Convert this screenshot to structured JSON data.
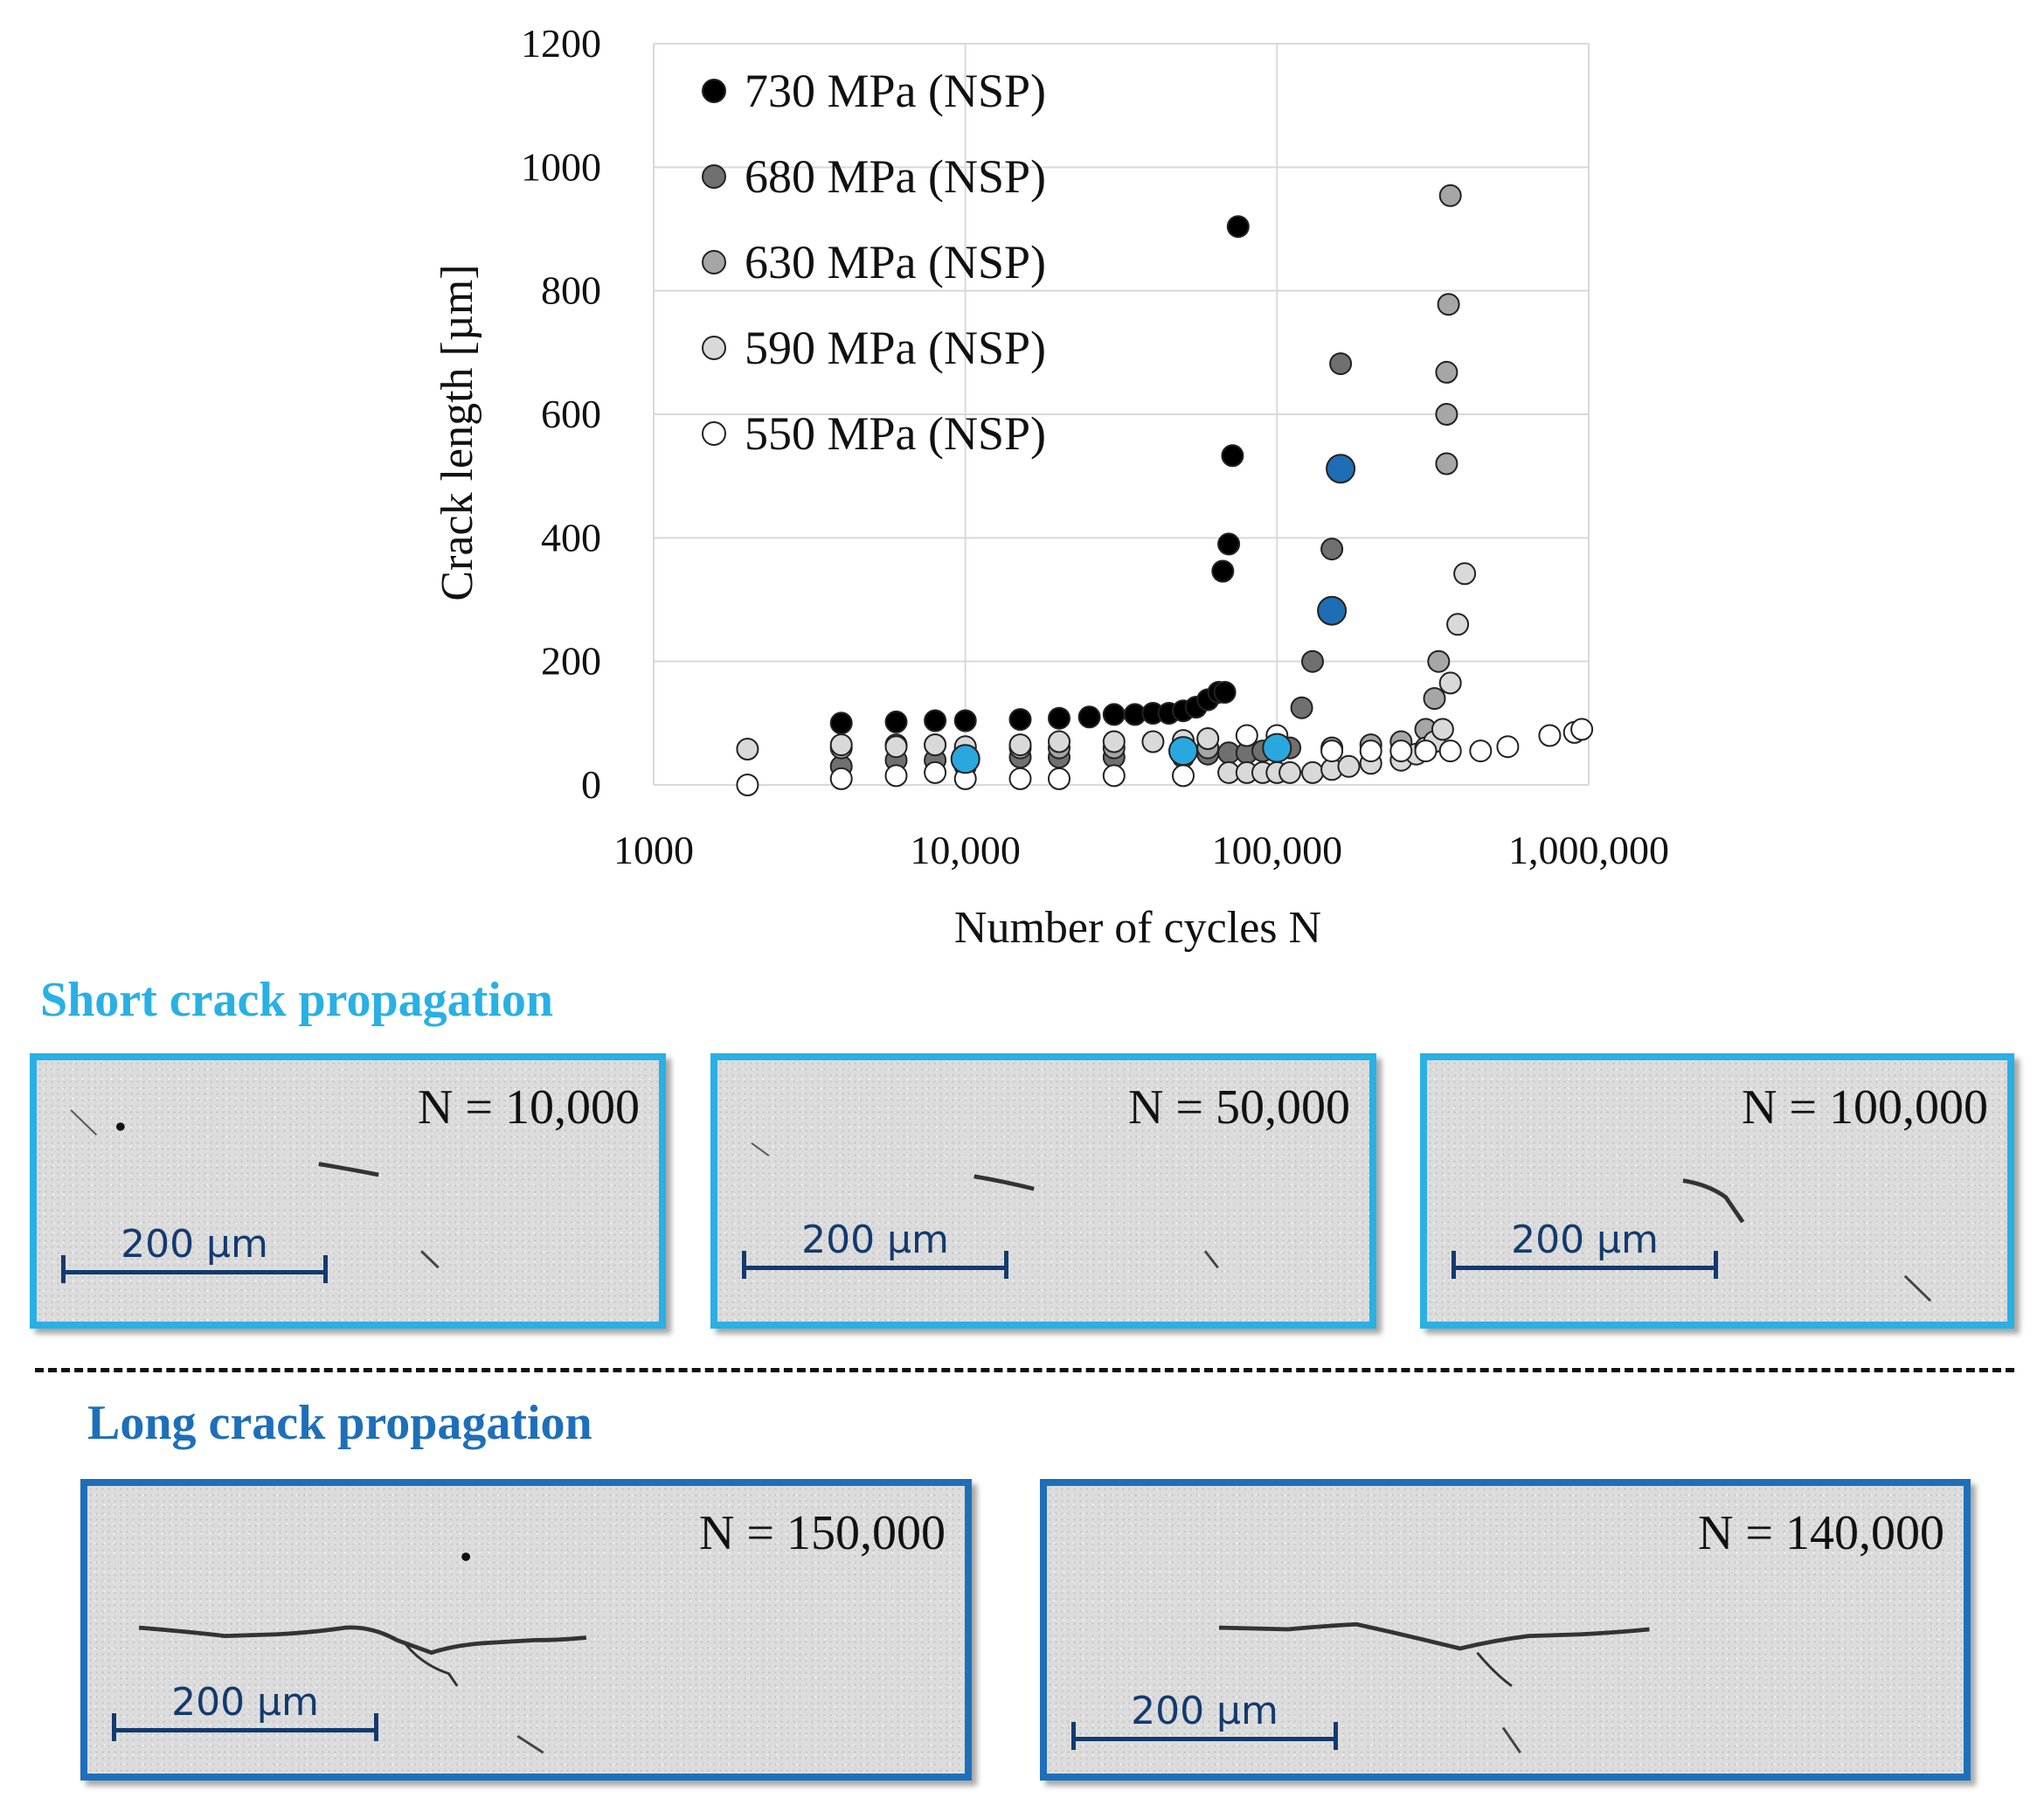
{
  "chart_data": {
    "type": "scatter",
    "xlabel": "Number of cycles N",
    "ylabel": "Crack length [µm]",
    "x_scale": "log",
    "xlim": [
      1000,
      1000000
    ],
    "ylim": [
      0,
      1200
    ],
    "x_ticks": [
      1000,
      10000,
      100000,
      1000000
    ],
    "x_tick_labels": [
      "1000",
      "10,000",
      "100,000",
      "1,000,000"
    ],
    "y_ticks": [
      0,
      200,
      400,
      600,
      800,
      1000,
      1200
    ],
    "y_tick_labels": [
      "0",
      "200",
      "400",
      "600",
      "800",
      "1000",
      "1200"
    ],
    "grid": true,
    "legend_position": "top-left",
    "series": [
      {
        "name": "730 MPa (NSP)",
        "color": "#000000",
        "points": [
          [
            4000,
            100
          ],
          [
            6000,
            102
          ],
          [
            8000,
            104
          ],
          [
            10000,
            104
          ],
          [
            15000,
            106
          ],
          [
            20000,
            108
          ],
          [
            25000,
            110
          ],
          [
            30000,
            114
          ],
          [
            35000,
            114
          ],
          [
            40000,
            116
          ],
          [
            45000,
            116
          ],
          [
            50000,
            120
          ],
          [
            55000,
            126
          ],
          [
            60000,
            138
          ],
          [
            65000,
            150
          ],
          [
            68000,
            150
          ],
          [
            67000,
            346
          ],
          [
            70000,
            390
          ],
          [
            72000,
            533
          ],
          [
            75000,
            904
          ]
        ]
      },
      {
        "name": "680 MPa (NSP)",
        "color": "#707070",
        "points": [
          [
            4000,
            30
          ],
          [
            6000,
            40
          ],
          [
            8000,
            40
          ],
          [
            10000,
            30
          ],
          [
            15000,
            45
          ],
          [
            20000,
            45
          ],
          [
            30000,
            45
          ],
          [
            50000,
            45
          ],
          [
            60000,
            50
          ],
          [
            70000,
            52
          ],
          [
            80000,
            52
          ],
          [
            90000,
            55
          ],
          [
            100000,
            55
          ],
          [
            110000,
            60
          ],
          [
            120000,
            125
          ],
          [
            130000,
            200
          ],
          [
            150000,
            382
          ],
          [
            160000,
            682
          ]
        ]
      },
      {
        "name": "630 MPa (NSP)",
        "color": "#a6a6a6",
        "points": [
          [
            4000,
            60
          ],
          [
            6000,
            65
          ],
          [
            8000,
            65
          ],
          [
            10000,
            60
          ],
          [
            15000,
            60
          ],
          [
            20000,
            60
          ],
          [
            30000,
            60
          ],
          [
            50000,
            60
          ],
          [
            60000,
            60
          ],
          [
            100000,
            60
          ],
          [
            150000,
            60
          ],
          [
            200000,
            65
          ],
          [
            250000,
            70
          ],
          [
            300000,
            90
          ],
          [
            320000,
            140
          ],
          [
            330000,
            200
          ],
          [
            350000,
            520
          ],
          [
            350000,
            600
          ],
          [
            350000,
            668
          ],
          [
            355000,
            778
          ],
          [
            360000,
            954
          ]
        ]
      },
      {
        "name": "590 MPa (NSP)",
        "color": "#d9d9d9",
        "points": [
          [
            2000,
            58
          ],
          [
            4000,
            65
          ],
          [
            6000,
            62
          ],
          [
            8000,
            65
          ],
          [
            10000,
            62
          ],
          [
            15000,
            65
          ],
          [
            20000,
            70
          ],
          [
            30000,
            70
          ],
          [
            40000,
            70
          ],
          [
            50000,
            72
          ],
          [
            60000,
            75
          ],
          [
            70000,
            20
          ],
          [
            80000,
            20
          ],
          [
            90000,
            20
          ],
          [
            100000,
            20
          ],
          [
            110000,
            20
          ],
          [
            130000,
            20
          ],
          [
            150000,
            25
          ],
          [
            170000,
            30
          ],
          [
            200000,
            35
          ],
          [
            250000,
            40
          ],
          [
            280000,
            50
          ],
          [
            300000,
            60
          ],
          [
            320000,
            70
          ],
          [
            340000,
            90
          ],
          [
            360000,
            165
          ],
          [
            380000,
            260
          ],
          [
            400000,
            342
          ]
        ]
      },
      {
        "name": "550 MPa (NSP)",
        "color": "#ffffff",
        "points": [
          [
            2000,
            0
          ],
          [
            4000,
            10
          ],
          [
            6000,
            15
          ],
          [
            8000,
            20
          ],
          [
            10000,
            10
          ],
          [
            15000,
            10
          ],
          [
            20000,
            10
          ],
          [
            30000,
            15
          ],
          [
            50000,
            15
          ],
          [
            80000,
            80
          ],
          [
            100000,
            80
          ],
          [
            150000,
            55
          ],
          [
            200000,
            55
          ],
          [
            250000,
            55
          ],
          [
            300000,
            55
          ],
          [
            360000,
            55
          ],
          [
            450000,
            55
          ],
          [
            550000,
            62
          ],
          [
            750000,
            80
          ],
          [
            900000,
            85
          ],
          [
            950000,
            90
          ]
        ]
      },
      {
        "name": "",
        "color": "#29a8e0",
        "points": [
          [
            10000,
            42
          ],
          [
            50000,
            55
          ],
          [
            100000,
            60
          ]
        ]
      },
      {
        "name": "",
        "color": "#1f6db5",
        "points": [
          [
            150000,
            282
          ],
          [
            160000,
            512
          ]
        ]
      }
    ]
  },
  "sections": {
    "short": {
      "title": "Short crack propagation",
      "color": "#29b0e4",
      "panels": [
        {
          "label": "N = 10,000",
          "scale": "200 µm"
        },
        {
          "label": "N = 50,000",
          "scale": "200 µm"
        },
        {
          "label": "N = 100,000",
          "scale": "200 µm"
        }
      ]
    },
    "long": {
      "title": "Long crack propagation",
      "color": "#1e6fba",
      "panels": [
        {
          "label": "N = 150,000",
          "scale": "200 µm"
        },
        {
          "label": "N = 140,000",
          "scale": "200 µm"
        }
      ]
    }
  }
}
